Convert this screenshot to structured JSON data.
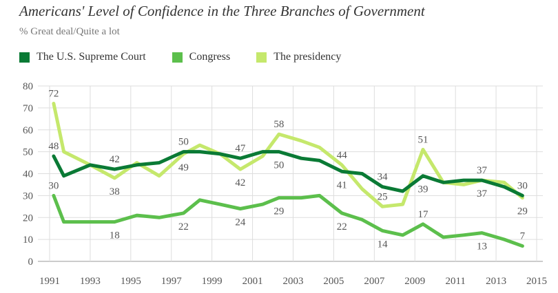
{
  "chart_data": {
    "type": "line",
    "title": "Americans' Level of Confidence in the Three Branches of Government",
    "subtitle": "% Great deal/Quite a lot",
    "xlabel": "",
    "ylabel": "",
    "xlim": [
      1991,
      2015
    ],
    "ylim": [
      0,
      80
    ],
    "x_ticks": [
      "1991",
      "1993",
      "1995",
      "1997",
      "1999",
      "2001",
      "2003",
      "2005",
      "2007",
      "2009",
      "2011",
      "2013",
      "2015"
    ],
    "y_ticks": [
      "0",
      "10",
      "20",
      "30",
      "40",
      "50",
      "60",
      "70",
      "80"
    ],
    "grid": true,
    "legend_position": "top-left",
    "series": [
      {
        "name": "The U.S. Supreme Court",
        "color": "#0a7a35",
        "x": [
          1991.2,
          1991.7,
          1993.0,
          1994.2,
          1995.3,
          1996.4,
          1997.6,
          1998.4,
          1999.4,
          2000.4,
          2001.5,
          2002.3,
          2003.4,
          2004.3,
          2005.4,
          2006.4,
          2007.4,
          2008.4,
          2009.4,
          2010.4,
          2011.4,
          2012.3,
          2013.4,
          2014.3
        ],
        "values": [
          48,
          39,
          44,
          42,
          44,
          45,
          50,
          50,
          49,
          47,
          50,
          50,
          47,
          46,
          41,
          40,
          34,
          32,
          39,
          36,
          37,
          37,
          34,
          30
        ]
      },
      {
        "name": "Congress",
        "color": "#5cbf4c",
        "x": [
          1991.2,
          1991.7,
          1993.0,
          1994.2,
          1995.3,
          1996.4,
          1997.6,
          1998.4,
          1999.4,
          2000.4,
          2001.5,
          2002.3,
          2003.4,
          2004.3,
          2005.4,
          2006.4,
          2007.4,
          2008.4,
          2009.4,
          2010.4,
          2011.4,
          2012.3,
          2013.4,
          2014.3
        ],
        "values": [
          30,
          18,
          18,
          18,
          21,
          20,
          22,
          28,
          26,
          24,
          26,
          29,
          29,
          30,
          22,
          19,
          14,
          12,
          17,
          11,
          12,
          13,
          10,
          7
        ]
      },
      {
        "name": "The presidency",
        "color": "#c5e86c",
        "x": [
          1991.2,
          1991.7,
          1993.0,
          1994.2,
          1995.3,
          1996.4,
          1997.6,
          1998.4,
          1999.4,
          2000.4,
          2001.5,
          2002.3,
          2003.4,
          2004.3,
          2005.4,
          2006.4,
          2007.4,
          2008.4,
          2009.4,
          2010.4,
          2011.4,
          2012.3,
          2013.4,
          2014.3
        ],
        "values": [
          72,
          50,
          44,
          38,
          45,
          39,
          49,
          53,
          49,
          42,
          48,
          58,
          55,
          52,
          44,
          33,
          25,
          26,
          51,
          36,
          35,
          37,
          36,
          29
        ]
      }
    ],
    "annotations": [
      {
        "series": 0,
        "index": 0,
        "text": "48",
        "pos": "above"
      },
      {
        "series": 1,
        "index": 0,
        "text": "30",
        "pos": "above"
      },
      {
        "series": 2,
        "index": 0,
        "text": "72",
        "pos": "above"
      },
      {
        "series": 0,
        "index": 3,
        "text": "42",
        "pos": "above"
      },
      {
        "series": 2,
        "index": 3,
        "text": "38",
        "pos": "below"
      },
      {
        "series": 1,
        "index": 3,
        "text": "18",
        "pos": "below"
      },
      {
        "series": 0,
        "index": 6,
        "text": "50",
        "pos": "above"
      },
      {
        "series": 2,
        "index": 6,
        "text": "49",
        "pos": "below"
      },
      {
        "series": 1,
        "index": 6,
        "text": "22",
        "pos": "below"
      },
      {
        "series": 0,
        "index": 9,
        "text": "47",
        "pos": "above"
      },
      {
        "series": 2,
        "index": 9,
        "text": "42",
        "pos": "below"
      },
      {
        "series": 1,
        "index": 9,
        "text": "24",
        "pos": "below"
      },
      {
        "series": 2,
        "index": 11,
        "text": "58",
        "pos": "above"
      },
      {
        "series": 0,
        "index": 11,
        "text": "50",
        "pos": "below"
      },
      {
        "series": 1,
        "index": 11,
        "text": "29",
        "pos": "below"
      },
      {
        "series": 2,
        "index": 14,
        "text": "44",
        "pos": "above"
      },
      {
        "series": 0,
        "index": 14,
        "text": "41",
        "pos": "below"
      },
      {
        "series": 1,
        "index": 14,
        "text": "22",
        "pos": "below"
      },
      {
        "series": 0,
        "index": 16,
        "text": "34",
        "pos": "above"
      },
      {
        "series": 2,
        "index": 16,
        "text": "25",
        "pos": "above"
      },
      {
        "series": 1,
        "index": 16,
        "text": "14",
        "pos": "below"
      },
      {
        "series": 2,
        "index": 18,
        "text": "51",
        "pos": "above"
      },
      {
        "series": 0,
        "index": 18,
        "text": "39",
        "pos": "below"
      },
      {
        "series": 1,
        "index": 18,
        "text": "17",
        "pos": "above"
      },
      {
        "series": 0,
        "index": 21,
        "text": "37",
        "pos": "above"
      },
      {
        "series": 2,
        "index": 21,
        "text": "37",
        "pos": "below"
      },
      {
        "series": 1,
        "index": 21,
        "text": "13",
        "pos": "below"
      },
      {
        "series": 0,
        "index": 23,
        "text": "30",
        "pos": "above"
      },
      {
        "series": 2,
        "index": 23,
        "text": "29",
        "pos": "below"
      },
      {
        "series": 1,
        "index": 23,
        "text": "7",
        "pos": "above"
      }
    ]
  }
}
